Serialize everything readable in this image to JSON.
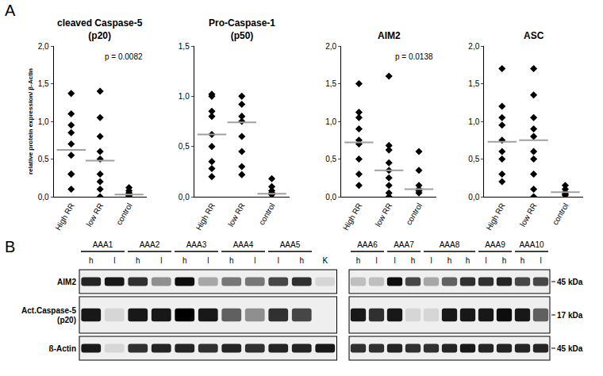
{
  "panel_A": {
    "label": "A"
  },
  "chart_data": [
    {
      "type": "scatter",
      "title": [
        "cleaved Caspase-5",
        "(p20)"
      ],
      "y_label": "relative protein expression/ β-Actin",
      "categories": [
        "High RR",
        "low RR",
        "control"
      ],
      "values": [
        [
          1.37,
          1.1,
          0.95,
          0.85,
          0.7,
          0.55,
          0.3,
          0.3,
          0.1
        ],
        [
          1.4,
          1.05,
          0.8,
          0.6,
          0.5,
          0.3,
          0.2,
          0.1,
          0.0
        ],
        [
          0.12,
          0.08,
          0.05,
          0.03,
          0.02,
          0.01
        ]
      ],
      "medians": [
        0.62,
        0.48,
        0.03
      ],
      "color": "#000000",
      "marker": "diamond",
      "annotation": "p = 0.0082",
      "ylim": [
        0,
        2
      ],
      "yticks": [
        {
          "value": 0,
          "label": "0,0"
        },
        {
          "value": 0.5,
          "label": "0,5"
        },
        {
          "value": 1,
          "label": "1,0"
        },
        {
          "value": 1.5,
          "label": "1,5"
        },
        {
          "value": 2,
          "label": "2,0"
        }
      ],
      "grid": false
    },
    {
      "type": "scatter",
      "title": [
        "Pro-Caspase-1",
        "(p50)"
      ],
      "categories": [
        "High RR",
        "low RR",
        "control"
      ],
      "values": [
        [
          1.02,
          1.0,
          0.85,
          0.8,
          0.62,
          0.5,
          0.35,
          0.28,
          0.2
        ],
        [
          1.0,
          0.92,
          0.8,
          0.75,
          0.6,
          0.45,
          0.3,
          0.22
        ],
        [
          0.18,
          0.1,
          0.06,
          0.04,
          0.02
        ]
      ],
      "medians": [
        0.62,
        0.74,
        0.03
      ],
      "color": "#000000",
      "marker": "diamond",
      "ylim": [
        0,
        1.5
      ],
      "yticks": [
        {
          "value": 0,
          "label": "0,0"
        },
        {
          "value": 0.5,
          "label": "0,5"
        },
        {
          "value": 1,
          "label": "1,0"
        },
        {
          "value": 1.5,
          "label": "1,5"
        }
      ],
      "grid": false
    },
    {
      "type": "scatter",
      "title": [
        "AIM2"
      ],
      "categories": [
        "High RR",
        "low RR",
        "control"
      ],
      "values": [
        [
          1.5,
          1.12,
          1.05,
          0.9,
          0.75,
          0.7,
          0.5,
          0.3,
          0.15
        ],
        [
          1.6,
          0.68,
          0.62,
          0.45,
          0.35,
          0.25,
          0.15,
          0.05,
          0.0
        ],
        [
          0.6,
          0.35,
          0.15,
          0.1,
          0.08,
          0.05
        ]
      ],
      "medians": [
        0.72,
        0.35,
        0.1
      ],
      "color": "#000000",
      "marker": "diamond",
      "annotation": "p = 0.0138",
      "ylim": [
        0,
        2
      ],
      "yticks": [
        {
          "value": 0,
          "label": "0,0"
        },
        {
          "value": 0.5,
          "label": "0,5"
        },
        {
          "value": 1,
          "label": "1,0"
        },
        {
          "value": 1.5,
          "label": "1,5"
        },
        {
          "value": 2,
          "label": "2,0"
        }
      ],
      "grid": false
    },
    {
      "type": "scatter",
      "title": [
        "ASC"
      ],
      "categories": [
        "High RR",
        "low RR",
        "control"
      ],
      "values": [
        [
          1.7,
          1.2,
          1.05,
          0.95,
          0.75,
          0.6,
          0.5,
          0.3,
          0.2
        ],
        [
          1.7,
          1.35,
          1.05,
          0.9,
          0.8,
          0.6,
          0.5,
          0.3,
          0.1,
          0.0
        ],
        [
          0.15,
          0.1,
          0.06,
          0.04,
          0.02
        ]
      ],
      "medians": [
        0.73,
        0.75,
        0.06
      ],
      "color": "#000000",
      "marker": "diamond",
      "ylim": [
        0,
        2
      ],
      "yticks": [
        {
          "value": 0,
          "label": "0,0"
        },
        {
          "value": 0.5,
          "label": "0,5"
        },
        {
          "value": 1,
          "label": "1,0"
        },
        {
          "value": 1.5,
          "label": "1,5"
        },
        {
          "value": 2,
          "label": "2,0"
        }
      ],
      "grid": false
    }
  ],
  "panel_B": {
    "label": "B",
    "rows": [
      {
        "label": [
          "AIM2"
        ],
        "size": "45 kDa"
      },
      {
        "label": [
          "Act.Caspase-5",
          "(p20)"
        ],
        "size": "17 kDa"
      },
      {
        "label": [
          "ß-Actin"
        ],
        "size": "45 kDa"
      }
    ],
    "blots": [
      {
        "lanes": [
          {
            "sample": "AAA1",
            "label": "h"
          },
          {
            "sample": "AAA1",
            "label": "l"
          },
          {
            "sample": "AAA2",
            "label": "h"
          },
          {
            "sample": "AAA2",
            "label": "l"
          },
          {
            "sample": "AAA3",
            "label": "h"
          },
          {
            "sample": "AAA3",
            "label": "l"
          },
          {
            "sample": "AAA4",
            "label": "h"
          },
          {
            "sample": "AAA4",
            "label": "l"
          },
          {
            "sample": "AAA5",
            "label": "l"
          },
          {
            "sample": "AAA5",
            "label": "h"
          },
          {
            "sample": null,
            "label": "K"
          }
        ],
        "intensity": [
          [
            0.85,
            0.9,
            0.8,
            0.4,
            0.95,
            0.3,
            0.5,
            0.5,
            0.7,
            0.8,
            0.1
          ],
          [
            0.9,
            0.1,
            0.9,
            0.9,
            1.0,
            0.9,
            0.6,
            0.4,
            0.8,
            0.7,
            0.0
          ],
          [
            0.9,
            0.1,
            0.8,
            0.85,
            0.85,
            0.8,
            0.85,
            0.8,
            0.85,
            0.85,
            0.9
          ]
        ]
      },
      {
        "lanes": [
          {
            "sample": "AAA6",
            "label": "h"
          },
          {
            "sample": "AAA6",
            "label": "l"
          },
          {
            "sample": "AAA7",
            "label": "l"
          },
          {
            "sample": "AAA7",
            "label": "h"
          },
          {
            "sample": "AAA8",
            "label": "l"
          },
          {
            "sample": "AAA8",
            "label": "h"
          },
          {
            "sample": "AAA8",
            "label": "h"
          },
          {
            "sample": "AAA9",
            "label": "l"
          },
          {
            "sample": "AAA9",
            "label": "h"
          },
          {
            "sample": "AAA10",
            "label": "h"
          },
          {
            "sample": "AAA10",
            "label": "l"
          }
        ],
        "intensity": [
          [
            0.2,
            0.2,
            0.95,
            0.7,
            0.3,
            0.6,
            0.8,
            0.8,
            0.85,
            0.7,
            0.7
          ],
          [
            0.9,
            0.8,
            0.9,
            0.1,
            0.1,
            0.9,
            0.9,
            0.9,
            0.95,
            0.9,
            0.6
          ],
          [
            0.8,
            0.8,
            0.85,
            0.8,
            0.8,
            0.85,
            0.9,
            0.85,
            0.85,
            0.85,
            0.85
          ]
        ]
      }
    ]
  }
}
